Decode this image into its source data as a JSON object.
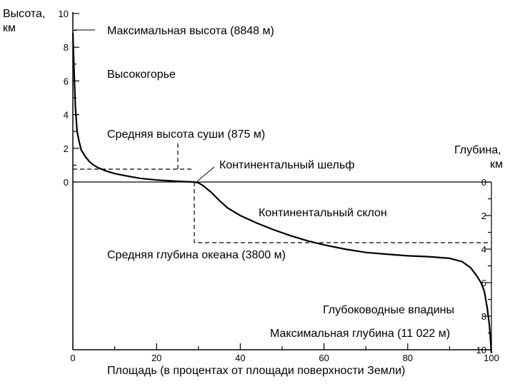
{
  "chart_data": {
    "type": "area",
    "title": "",
    "xlabel": "Площадь (в процентах от площади поверхности Земли)",
    "ylabel_left": [
      "Высота,",
      "км"
    ],
    "ylabel_right": [
      "Глубина,",
      "км"
    ],
    "xlim": [
      0,
      100
    ],
    "ylim_height": [
      0,
      10
    ],
    "ylim_depth": [
      0,
      10
    ],
    "x_ticks": [
      "0",
      "20",
      "40",
      "60",
      "80",
      "100"
    ],
    "y_left_ticks": [
      "0",
      "2",
      "4",
      "6",
      "8",
      "10"
    ],
    "y_right_ticks": [
      "0",
      "2",
      "4",
      "6",
      "8",
      "10"
    ],
    "series": [
      {
        "x": [
          0,
          0.3,
          0.6,
          1,
          1.5,
          2,
          3,
          4,
          5,
          6,
          8,
          10,
          13,
          16,
          20,
          24,
          27,
          29,
          30,
          31,
          33,
          35,
          37,
          40,
          44,
          48,
          52,
          56,
          60,
          65,
          70,
          75,
          80,
          85,
          90,
          93,
          95,
          96.5,
          97.5,
          98.3,
          99,
          99.5,
          100
        ],
        "y": [
          8.85,
          6.5,
          4.5,
          3.0,
          2.4,
          1.9,
          1.5,
          1.2,
          1.0,
          0.85,
          0.65,
          0.5,
          0.35,
          0.22,
          0.12,
          0.06,
          0.02,
          0.0,
          -0.05,
          -0.2,
          -0.6,
          -1.1,
          -1.55,
          -2.0,
          -2.45,
          -2.85,
          -3.2,
          -3.5,
          -3.75,
          -4.0,
          -4.2,
          -4.3,
          -4.4,
          -4.45,
          -4.55,
          -4.75,
          -5.1,
          -5.6,
          -6.0,
          -6.5,
          -7.5,
          -8.5,
          -11.0
        ]
      }
    ],
    "reference_lines": {
      "mean_land_height_km": 0.875,
      "mean_ocean_depth_km": 3.8,
      "land_area_percent": 29
    },
    "annotations": {
      "max_height": "Максимальная высота (8848 м)",
      "highlands": "Высокогорье",
      "mean_land": "Средняя высота суши (875 м)",
      "shelf": "Континентальный шельф",
      "slope": "Континентальный склон",
      "mean_ocean": "Средняя глубина океана (3800 м)",
      "trenches": "Глубоководные впадины",
      "max_depth": "Максимальная глубина (11 022 м)"
    },
    "grid": false,
    "legend": "none"
  }
}
